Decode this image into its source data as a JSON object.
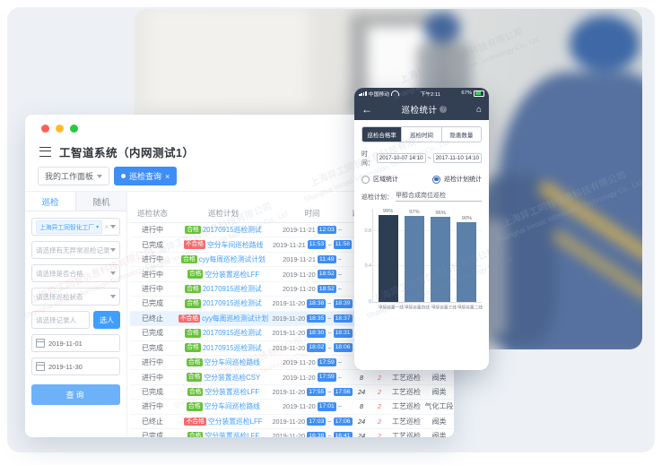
{
  "page": {
    "background": "#ffffff",
    "panel_color": "#edf1f6"
  },
  "watermark": {
    "line1": "上海异工同智信息科技有限公司",
    "line2": "Shanghai Inroad Information Technology Co., Ltd"
  },
  "desktop": {
    "traffic_lights": [
      "#ff5f57",
      "#febc2e",
      "#28c840"
    ],
    "title": "工智道系统（内网测试1）",
    "workspace_tabs": [
      {
        "label": "我的工作面板",
        "active": false
      },
      {
        "label": "巡检查询",
        "active": true
      }
    ],
    "sidebar": {
      "tabs": [
        {
          "label": "巡检",
          "active": true
        },
        {
          "label": "随机",
          "active": false
        }
      ],
      "org_tag": "上海异工同智化工厂",
      "selects": [
        "请选择有无异常巡检记录",
        "请选择是否合格",
        "请选择巡检状态"
      ],
      "recorder_placeholder": "请选择记录人",
      "pick_person_label": "选人",
      "date_start": "2019-11-01",
      "date_end": "2019-11-30",
      "search_label": "查询"
    },
    "table": {
      "headers": [
        "巡检状态",
        "巡检计划",
        "时间",
        "编写人",
        "",
        "",
        ""
      ],
      "rows": [
        {
          "status": "进行中",
          "result": "合格",
          "ok": true,
          "plan": "20170915巡检测试",
          "date": "2019-11-21",
          "t1": "12:03",
          "t2": "",
          "num": "8",
          "red": "2",
          "type1": "工艺巡检",
          "type2": "阀类",
          "highlight": false
        },
        {
          "status": "已完成",
          "result": "不合格",
          "ok": false,
          "plan": "空分车间巡检路线",
          "date": "2019-11-21",
          "t1": "11:53",
          "t2": "11:58",
          "num": "8",
          "red": "2",
          "type1": "工艺巡检",
          "type2": "阀类",
          "highlight": false
        },
        {
          "status": "进行中",
          "result": "合格",
          "ok": true,
          "plan": "cyy每周巡检测试计划",
          "date": "2019-11-21",
          "t1": "11:49",
          "t2": "",
          "num": "8",
          "red": "2",
          "type1": "工艺巡检",
          "type2": "阀类",
          "highlight": false
        },
        {
          "status": "进行中",
          "result": "合格",
          "ok": true,
          "plan": "空分装置巡检LFF",
          "date": "2019-11-20",
          "t1": "18:52",
          "t2": "",
          "num": "8",
          "red": "2",
          "type1": "工艺巡检",
          "type2": "阀类",
          "highlight": false
        },
        {
          "status": "进行中",
          "result": "合格",
          "ok": true,
          "plan": "20170915巡检测试",
          "date": "2019-11-20",
          "t1": "18:52",
          "t2": "",
          "num": "8",
          "red": "2",
          "type1": "工艺巡检",
          "type2": "阀类",
          "highlight": false
        },
        {
          "status": "已完成",
          "result": "合格",
          "ok": true,
          "plan": "20170915巡检测试",
          "date": "2019-11-20",
          "t1": "18:38",
          "t2": "18:39",
          "num": "21",
          "red": "2",
          "type1": "工艺巡检",
          "type2": "阀类",
          "highlight": false
        },
        {
          "status": "已终止",
          "result": "不合格",
          "ok": false,
          "plan": "cyy每周巡检测试计划",
          "date": "2019-11-20",
          "t1": "18:35",
          "t2": "18:37",
          "num": "8",
          "red": "2",
          "type1": "工艺巡检",
          "type2": "阀类",
          "highlight": true
        },
        {
          "status": "已完成",
          "result": "合格",
          "ok": true,
          "plan": "20170915巡检测试",
          "date": "2019-11-20",
          "t1": "18:30",
          "t2": "18:31",
          "num": "21",
          "red": "2",
          "type1": "工艺巡检",
          "type2": "阀类",
          "highlight": false
        },
        {
          "status": "已完成",
          "result": "合格",
          "ok": true,
          "plan": "20170915巡检测试",
          "date": "2019-11-20",
          "t1": "18:02",
          "t2": "18:06",
          "num": "21",
          "red": "2",
          "type1": "工艺巡检",
          "type2": "阀类",
          "highlight": false
        },
        {
          "status": "进行中",
          "result": "合格",
          "ok": true,
          "plan": "空分车间巡检路线",
          "date": "2019-11-20",
          "t1": "17:59",
          "t2": "",
          "num": "8",
          "red": "2",
          "type1": "工艺巡检",
          "type2": "阀类",
          "highlight": false
        },
        {
          "status": "进行中",
          "result": "合格",
          "ok": true,
          "plan": "空分装置巡检CSY",
          "date": "2019-11-20",
          "t1": "17:59",
          "t2": "",
          "num": "8",
          "red": "2",
          "type1": "工艺巡检",
          "type2": "阀类",
          "highlight": false
        },
        {
          "status": "已完成",
          "result": "合格",
          "ok": true,
          "plan": "空分装置巡检LFF",
          "date": "2019-11-20",
          "t1": "17:55",
          "t2": "17:56",
          "num": "24",
          "red": "2",
          "type1": "工艺巡检",
          "type2": "阀类",
          "highlight": false
        },
        {
          "status": "进行中",
          "result": "合格",
          "ok": true,
          "plan": "空分车间巡检路线",
          "date": "2019-11-20",
          "t1": "17:01",
          "t2": "",
          "num": "8",
          "red": "2",
          "type1": "工艺巡检",
          "type2": "气化工段",
          "highlight": false
        },
        {
          "status": "已终止",
          "result": "不合格",
          "ok": false,
          "plan": "空分装置巡检LFF",
          "date": "2019-11-20",
          "t1": "17:03",
          "t2": "17:06",
          "num": "24",
          "red": "2",
          "type1": "工艺巡检",
          "type2": "阀类",
          "highlight": false
        },
        {
          "status": "已完成",
          "result": "合格",
          "ok": true,
          "plan": "空分装置巡检LFF",
          "date": "2019-11-20",
          "t1": "16:38",
          "t2": "16:41",
          "num": "24",
          "red": "2",
          "type1": "工艺巡检",
          "type2": "阀类",
          "highlight": false
        },
        {
          "status": "已终止",
          "result": "不合格",
          "ok": false,
          "plan": "空分装置巡检LFF",
          "plan_badge": "超时",
          "date": "2019-11-20",
          "t1": "16:48",
          "t2": "16:55",
          "num": "24",
          "red": "2",
          "type1": "工艺巡检",
          "type2": "阀类",
          "highlight": false
        }
      ]
    }
  },
  "phone": {
    "status_bar": {
      "carrier": "中国移动",
      "time": "下午2:11",
      "battery": "67%"
    },
    "nav": {
      "back": "←",
      "title": "巡检统计",
      "info": "?",
      "home": "⌂"
    },
    "tabs": [
      {
        "label": "巡检合格率",
        "active": true
      },
      {
        "label": "巡检时间",
        "active": false
      },
      {
        "label": "隐患数量",
        "active": false
      }
    ],
    "time_label": "时间：",
    "time_start": "2017-10-07 14:10",
    "time_sep": "~",
    "time_end": "2017-11-10 14:10",
    "radios": [
      {
        "label": "区域统计",
        "checked": false
      },
      {
        "label": "巡检计划统计",
        "checked": true
      }
    ],
    "plan_label": "巡检计划：",
    "plan_value": "甲醇合成岗位巡检",
    "chart_data": {
      "type": "bar",
      "title": "",
      "categories": [
        "甲醇装置一线",
        "甲醇装置四线",
        "甲醇装置三线",
        "甲醇装置二线"
      ],
      "values": [
        99,
        97,
        96,
        90
      ],
      "value_labels": [
        "99%",
        "97%",
        "96%",
        "90%"
      ],
      "yticks": [
        {
          "label": "0",
          "pos": 0
        },
        {
          "label": "0.4",
          "pos": 40
        },
        {
          "label": "0.8",
          "pos": 80
        }
      ],
      "ylim": [
        0,
        105
      ],
      "grid": true,
      "bar_colors": [
        "#2c3e54",
        "#5b80a9",
        "#5b80a9",
        "#5b80a9"
      ],
      "xlabel": "",
      "ylabel": ""
    }
  }
}
